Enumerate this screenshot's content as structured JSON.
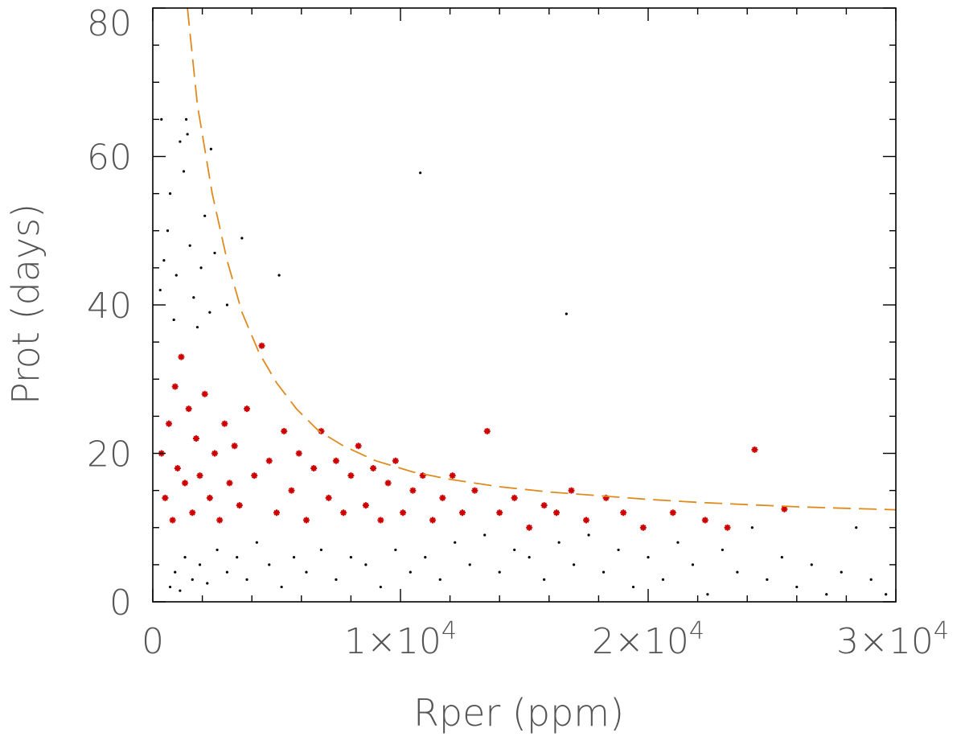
{
  "chart_data": {
    "type": "scatter",
    "title": "",
    "xlabel": "Rper (ppm)",
    "ylabel": "Prot (days)",
    "xlim": [
      0,
      30000
    ],
    "ylim": [
      0,
      80
    ],
    "grid": false,
    "x_ticks": [
      {
        "value": 0,
        "label": "0",
        "mantissa": "0",
        "exponent": ""
      },
      {
        "value": 10000,
        "label": "1×10^4",
        "mantissa": "1×10",
        "exponent": "4"
      },
      {
        "value": 20000,
        "label": "2×10^4",
        "mantissa": "2×10",
        "exponent": "4"
      },
      {
        "value": 30000,
        "label": "3×10^4",
        "mantissa": "3×10",
        "exponent": "4"
      }
    ],
    "y_ticks": [
      {
        "value": 0,
        "label": "0"
      },
      {
        "value": 20,
        "label": "20"
      },
      {
        "value": 40,
        "label": "40"
      },
      {
        "value": 60,
        "label": "60"
      },
      {
        "value": 80,
        "label": "80"
      }
    ],
    "colors": {
      "black_points": "#000000",
      "red_points": "#cc0000",
      "envelope": "#e08a1e"
    },
    "series": [
      {
        "style": "dot",
        "color": "#000000",
        "points": [
          [
            700,
            2
          ],
          [
            900,
            4
          ],
          [
            1100,
            1.5
          ],
          [
            1300,
            6
          ],
          [
            1600,
            3
          ],
          [
            1900,
            5
          ],
          [
            2200,
            2.5
          ],
          [
            2600,
            7
          ],
          [
            3000,
            4
          ],
          [
            3400,
            6
          ],
          [
            3800,
            3
          ],
          [
            4200,
            8
          ],
          [
            4700,
            5
          ],
          [
            5200,
            2
          ],
          [
            5700,
            6
          ],
          [
            6200,
            4
          ],
          [
            6800,
            7
          ],
          [
            7400,
            3
          ],
          [
            8000,
            6
          ],
          [
            8600,
            5
          ],
          [
            9200,
            2
          ],
          [
            9800,
            7
          ],
          [
            10400,
            4
          ],
          [
            11000,
            6
          ],
          [
            11600,
            3
          ],
          [
            12200,
            8
          ],
          [
            12800,
            5
          ],
          [
            13400,
            9
          ],
          [
            14000,
            4
          ],
          [
            14600,
            7
          ],
          [
            15200,
            6
          ],
          [
            15800,
            3
          ],
          [
            16400,
            8
          ],
          [
            17000,
            5
          ],
          [
            17600,
            9
          ],
          [
            18200,
            4
          ],
          [
            18800,
            7
          ],
          [
            19400,
            2
          ],
          [
            20000,
            6
          ],
          [
            20600,
            3
          ],
          [
            21200,
            8
          ],
          [
            21800,
            5
          ],
          [
            22400,
            1
          ],
          [
            23000,
            7
          ],
          [
            23600,
            4
          ],
          [
            24200,
            10
          ],
          [
            24800,
            3
          ],
          [
            25400,
            6
          ],
          [
            26000,
            2
          ],
          [
            26600,
            5
          ],
          [
            27200,
            1
          ],
          [
            27800,
            4
          ],
          [
            28400,
            10
          ],
          [
            29000,
            3
          ],
          [
            29600,
            1
          ],
          [
            300,
            42
          ],
          [
            450,
            46
          ],
          [
            600,
            50
          ],
          [
            700,
            55
          ],
          [
            850,
            38
          ],
          [
            950,
            44
          ],
          [
            1100,
            62
          ],
          [
            1250,
            58
          ],
          [
            1400,
            63
          ],
          [
            1500,
            48
          ],
          [
            1650,
            41
          ],
          [
            1800,
            37
          ],
          [
            1950,
            45
          ],
          [
            2100,
            52
          ],
          [
            2300,
            39
          ],
          [
            2500,
            47
          ],
          [
            3000,
            40
          ],
          [
            3600,
            49
          ],
          [
            5100,
            44
          ],
          [
            10800,
            57.8
          ],
          [
            16700,
            38.8
          ],
          [
            350,
            65
          ],
          [
            1350,
            65
          ],
          [
            2350,
            61
          ]
        ]
      },
      {
        "style": "star",
        "color": "#cc0000",
        "points": [
          [
            350,
            20
          ],
          [
            500,
            14
          ],
          [
            650,
            24
          ],
          [
            800,
            11
          ],
          [
            900,
            29
          ],
          [
            1000,
            18
          ],
          [
            1150,
            33
          ],
          [
            1300,
            16
          ],
          [
            1450,
            26
          ],
          [
            1600,
            12
          ],
          [
            1750,
            22
          ],
          [
            1900,
            17
          ],
          [
            2100,
            28
          ],
          [
            2300,
            14
          ],
          [
            2500,
            20
          ],
          [
            2700,
            11
          ],
          [
            2900,
            24
          ],
          [
            3100,
            16
          ],
          [
            3300,
            21
          ],
          [
            3500,
            13
          ],
          [
            3800,
            26
          ],
          [
            4100,
            17
          ],
          [
            4400,
            34.5
          ],
          [
            4700,
            19
          ],
          [
            5000,
            12
          ],
          [
            5300,
            23
          ],
          [
            5600,
            15
          ],
          [
            5900,
            20
          ],
          [
            6200,
            11
          ],
          [
            6500,
            18
          ],
          [
            6800,
            23
          ],
          [
            7100,
            14
          ],
          [
            7400,
            19
          ],
          [
            7700,
            12
          ],
          [
            8000,
            17
          ],
          [
            8300,
            21
          ],
          [
            8600,
            13
          ],
          [
            8900,
            18
          ],
          [
            9200,
            11
          ],
          [
            9500,
            16
          ],
          [
            9800,
            19
          ],
          [
            10100,
            12
          ],
          [
            10500,
            15
          ],
          [
            10900,
            17
          ],
          [
            11300,
            11
          ],
          [
            11700,
            14
          ],
          [
            12100,
            17
          ],
          [
            12500,
            12
          ],
          [
            13000,
            15
          ],
          [
            13500,
            23
          ],
          [
            14000,
            12
          ],
          [
            14600,
            14
          ],
          [
            15200,
            10
          ],
          [
            15800,
            13
          ],
          [
            16300,
            12
          ],
          [
            16900,
            15
          ],
          [
            17500,
            11
          ],
          [
            18300,
            14
          ],
          [
            19000,
            12
          ],
          [
            19800,
            10
          ],
          [
            21000,
            12
          ],
          [
            22300,
            11
          ],
          [
            23200,
            10
          ],
          [
            24300,
            20.5
          ],
          [
            25500,
            12.5
          ]
        ]
      },
      {
        "style": "dashed-line",
        "color": "#e08a1e",
        "points": [
          [
            1400,
            80
          ],
          [
            1800,
            67
          ],
          [
            2400,
            55
          ],
          [
            3000,
            46
          ],
          [
            3600,
            39
          ],
          [
            4300,
            33.5
          ],
          [
            5000,
            29.5
          ],
          [
            5800,
            26
          ],
          [
            6700,
            23
          ],
          [
            7700,
            21
          ],
          [
            9000,
            19
          ],
          [
            10500,
            17.5
          ],
          [
            12000,
            16.5
          ],
          [
            14000,
            15.5
          ],
          [
            16000,
            14.8
          ],
          [
            18000,
            14.3
          ],
          [
            20000,
            13.8
          ],
          [
            22000,
            13.4
          ],
          [
            24000,
            13.1
          ],
          [
            26000,
            12.8
          ],
          [
            28000,
            12.6
          ],
          [
            30000,
            12.4
          ]
        ]
      }
    ]
  }
}
